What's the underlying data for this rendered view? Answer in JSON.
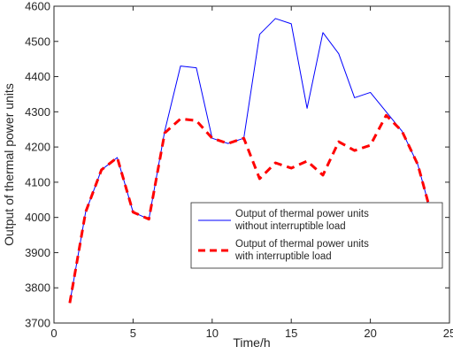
{
  "chart_data": {
    "type": "line",
    "title": "",
    "xlabel": "Time/h",
    "ylabel": "Output of thermal power units",
    "xlim": [
      0,
      25
    ],
    "ylim": [
      3700,
      4600
    ],
    "xticks": [
      0,
      5,
      10,
      15,
      20,
      25
    ],
    "yticks": [
      3700,
      3800,
      3900,
      4000,
      4100,
      4200,
      4300,
      4400,
      4500,
      4600
    ],
    "grid": false,
    "legend_position": "lower-right",
    "x": [
      1,
      2,
      3,
      4,
      5,
      6,
      7,
      8,
      9,
      10,
      11,
      12,
      13,
      14,
      15,
      16,
      17,
      18,
      19,
      20,
      21,
      22,
      23,
      24
    ],
    "series": [
      {
        "name": "Output of thermal power units without interruptible load",
        "color": "#0000ff",
        "style": "solid",
        "values": [
          3757,
          4015,
          4135,
          4170,
          4015,
          3995,
          4245,
          4430,
          4425,
          4225,
          4210,
          4225,
          4520,
          4565,
          4550,
          4310,
          4525,
          4465,
          4340,
          4355,
          4300,
          4245,
          4150,
          3985
        ]
      },
      {
        "name": "Output of thermal power units with interruptible load",
        "color": "#ff0000",
        "style": "dashed",
        "values": [
          3757,
          4015,
          4135,
          4170,
          4015,
          3995,
          4240,
          4280,
          4275,
          4225,
          4210,
          4225,
          4110,
          4155,
          4140,
          4160,
          4120,
          4215,
          4190,
          4205,
          4290,
          4245,
          4150,
          3985
        ]
      }
    ]
  }
}
